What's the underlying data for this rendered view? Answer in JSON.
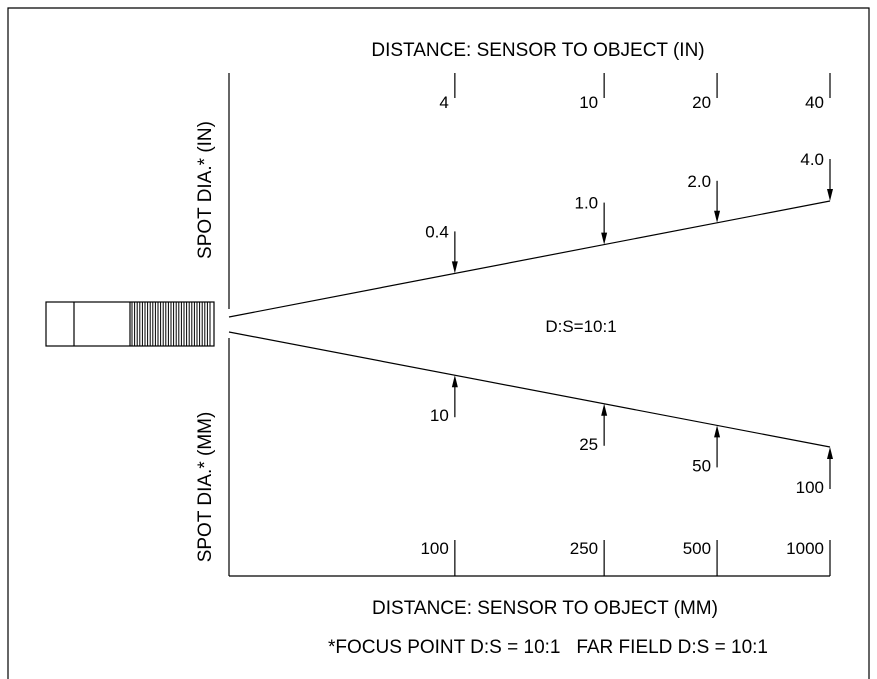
{
  "diagram": {
    "top_axis_title": "DISTANCE: SENSOR TO OBJECT (IN)",
    "bottom_axis_title": "DISTANCE: SENSOR TO OBJECT (MM)",
    "left_title_top": "SPOT DIA.* (IN)",
    "left_title_bottom": "SPOT DIA.* (MM)",
    "center_label": "D:S=10:1",
    "footnote": "*FOCUS POINT D:S = 10:1   FAR FIELD D:S = 10:1"
  },
  "chart_data": {
    "type": "line",
    "distance_in": [
      "4",
      "10",
      "20",
      "40"
    ],
    "distance_mm": [
      "100",
      "250",
      "500",
      "1000"
    ],
    "spot_in": [
      "0.4",
      "1.0",
      "2.0",
      "4.0"
    ],
    "spot_mm": [
      "10",
      "25",
      "50",
      "100"
    ]
  }
}
